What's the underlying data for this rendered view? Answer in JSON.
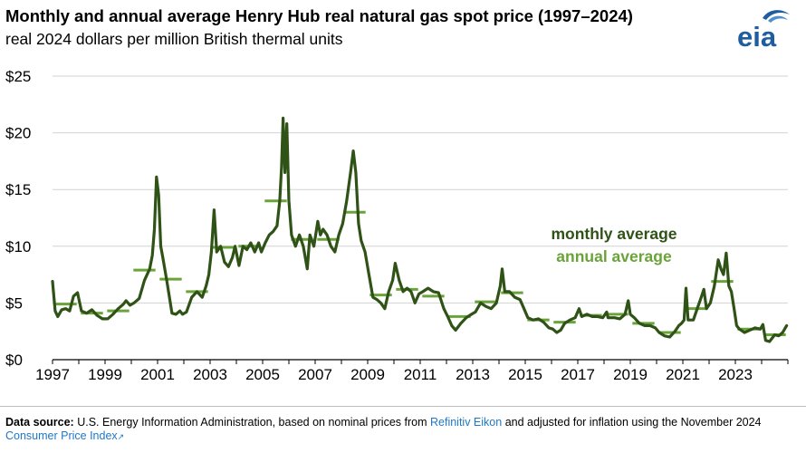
{
  "header": {
    "title": "Monthly and annual average Henry Hub real natural gas spot price (1997–2024)",
    "subtitle": "real 2024 dollars per million British thermal units",
    "logo_text": "eia"
  },
  "colors": {
    "monthly": "#2f5216",
    "annual": "#6aa33a",
    "grid": "#d2d2d2",
    "logo": "#1d5da0"
  },
  "chart_data": {
    "type": "line",
    "yunit": "$",
    "ylim": [
      0,
      25
    ],
    "yticks": [
      0,
      5,
      10,
      15,
      20,
      25
    ],
    "ytick_labels": [
      "$0",
      "$5",
      "$10",
      "$15",
      "$20",
      "$25"
    ],
    "xlim": [
      1997,
      2025
    ],
    "xticks": [
      1997,
      1999,
      2001,
      2003,
      2005,
      2007,
      2009,
      2011,
      2013,
      2015,
      2017,
      2019,
      2021,
      2023
    ],
    "xtick_labels": [
      "1997",
      "1999",
      "2001",
      "2003",
      "2005",
      "2007",
      "2009",
      "2011",
      "2013",
      "2015",
      "2017",
      "2019",
      "2021",
      "2023"
    ],
    "grid": "horizontal",
    "legend_placement": "right-center",
    "series": [
      {
        "name": "monthly average",
        "style": "line",
        "points": [
          [
            1997.0,
            6.9
          ],
          [
            1997.1,
            4.3
          ],
          [
            1997.2,
            3.8
          ],
          [
            1997.35,
            4.4
          ],
          [
            1997.5,
            4.5
          ],
          [
            1997.65,
            4.3
          ],
          [
            1997.8,
            5.6
          ],
          [
            1997.95,
            5.9
          ],
          [
            1998.1,
            4.3
          ],
          [
            1998.3,
            4.1
          ],
          [
            1998.5,
            4.4
          ],
          [
            1998.7,
            3.9
          ],
          [
            1998.9,
            3.6
          ],
          [
            1999.1,
            3.6
          ],
          [
            1999.3,
            4.0
          ],
          [
            1999.5,
            4.5
          ],
          [
            1999.7,
            4.9
          ],
          [
            1999.8,
            5.2
          ],
          [
            1999.95,
            4.8
          ],
          [
            2000.1,
            5.0
          ],
          [
            2000.3,
            5.4
          ],
          [
            2000.5,
            7.0
          ],
          [
            2000.7,
            8.0
          ],
          [
            2000.8,
            9.2
          ],
          [
            2000.88,
            11.5
          ],
          [
            2000.96,
            16.1
          ],
          [
            2001.04,
            14.5
          ],
          [
            2001.12,
            10.0
          ],
          [
            2001.2,
            9.0
          ],
          [
            2001.35,
            7.0
          ],
          [
            2001.45,
            5.5
          ],
          [
            2001.55,
            4.1
          ],
          [
            2001.7,
            4.0
          ],
          [
            2001.85,
            4.3
          ],
          [
            2001.95,
            4.0
          ],
          [
            2002.1,
            4.2
          ],
          [
            2002.3,
            5.5
          ],
          [
            2002.5,
            6.0
          ],
          [
            2002.7,
            5.5
          ],
          [
            2002.85,
            6.5
          ],
          [
            2002.95,
            7.5
          ],
          [
            2003.05,
            9.5
          ],
          [
            2003.15,
            13.2
          ],
          [
            2003.25,
            9.5
          ],
          [
            2003.4,
            10.0
          ],
          [
            2003.55,
            8.6
          ],
          [
            2003.7,
            8.2
          ],
          [
            2003.85,
            9.0
          ],
          [
            2003.95,
            10.0
          ],
          [
            2004.1,
            8.3
          ],
          [
            2004.25,
            10.0
          ],
          [
            2004.4,
            9.7
          ],
          [
            2004.55,
            10.3
          ],
          [
            2004.7,
            9.5
          ],
          [
            2004.85,
            10.3
          ],
          [
            2004.95,
            9.5
          ],
          [
            2005.1,
            10.3
          ],
          [
            2005.25,
            11.0
          ],
          [
            2005.4,
            11.3
          ],
          [
            2005.55,
            11.8
          ],
          [
            2005.65,
            14.0
          ],
          [
            2005.72,
            17.0
          ],
          [
            2005.78,
            21.3
          ],
          [
            2005.85,
            16.5
          ],
          [
            2005.92,
            20.8
          ],
          [
            2006.0,
            14.0
          ],
          [
            2006.1,
            11.0
          ],
          [
            2006.25,
            10.0
          ],
          [
            2006.4,
            11.0
          ],
          [
            2006.55,
            10.0
          ],
          [
            2006.7,
            8.0
          ],
          [
            2006.8,
            11.0
          ],
          [
            2006.95,
            10.0
          ],
          [
            2007.1,
            12.2
          ],
          [
            2007.2,
            11.0
          ],
          [
            2007.3,
            11.5
          ],
          [
            2007.45,
            11.0
          ],
          [
            2007.6,
            10.0
          ],
          [
            2007.75,
            9.5
          ],
          [
            2007.9,
            11.0
          ],
          [
            2008.05,
            12.0
          ],
          [
            2008.2,
            14.0
          ],
          [
            2008.35,
            16.5
          ],
          [
            2008.45,
            18.4
          ],
          [
            2008.55,
            16.5
          ],
          [
            2008.65,
            12.0
          ],
          [
            2008.75,
            10.5
          ],
          [
            2008.9,
            9.5
          ],
          [
            2009.05,
            7.5
          ],
          [
            2009.2,
            5.5
          ],
          [
            2009.35,
            5.3
          ],
          [
            2009.5,
            5.0
          ],
          [
            2009.65,
            4.5
          ],
          [
            2009.8,
            6.0
          ],
          [
            2009.95,
            7.0
          ],
          [
            2010.05,
            8.5
          ],
          [
            2010.2,
            7.0
          ],
          [
            2010.35,
            6.0
          ],
          [
            2010.5,
            6.3
          ],
          [
            2010.65,
            6.0
          ],
          [
            2010.8,
            5.0
          ],
          [
            2010.95,
            5.8
          ],
          [
            2011.1,
            6.0
          ],
          [
            2011.3,
            6.3
          ],
          [
            2011.5,
            6.0
          ],
          [
            2011.7,
            5.9
          ],
          [
            2011.9,
            4.5
          ],
          [
            2012.05,
            3.8
          ],
          [
            2012.2,
            3.0
          ],
          [
            2012.35,
            2.6
          ],
          [
            2012.55,
            3.2
          ],
          [
            2012.75,
            3.7
          ],
          [
            2012.95,
            4.0
          ],
          [
            2013.1,
            4.2
          ],
          [
            2013.3,
            5.0
          ],
          [
            2013.5,
            4.7
          ],
          [
            2013.7,
            4.5
          ],
          [
            2013.9,
            5.0
          ],
          [
            2014.05,
            6.5
          ],
          [
            2014.12,
            8.0
          ],
          [
            2014.22,
            6.0
          ],
          [
            2014.4,
            6.0
          ],
          [
            2014.6,
            5.5
          ],
          [
            2014.8,
            5.3
          ],
          [
            2014.95,
            4.5
          ],
          [
            2015.1,
            3.7
          ],
          [
            2015.3,
            3.5
          ],
          [
            2015.5,
            3.6
          ],
          [
            2015.7,
            3.3
          ],
          [
            2015.9,
            2.8
          ],
          [
            2016.05,
            2.7
          ],
          [
            2016.2,
            2.4
          ],
          [
            2016.35,
            2.6
          ],
          [
            2016.5,
            3.2
          ],
          [
            2016.7,
            3.5
          ],
          [
            2016.9,
            3.7
          ],
          [
            2017.05,
            4.5
          ],
          [
            2017.15,
            3.8
          ],
          [
            2017.35,
            4.0
          ],
          [
            2017.55,
            3.8
          ],
          [
            2017.75,
            3.8
          ],
          [
            2017.95,
            3.7
          ],
          [
            2018.1,
            4.2
          ],
          [
            2018.15,
            3.7
          ],
          [
            2018.4,
            3.7
          ],
          [
            2018.6,
            3.6
          ],
          [
            2018.8,
            4.0
          ],
          [
            2018.92,
            5.2
          ],
          [
            2019.0,
            4.0
          ],
          [
            2019.15,
            3.7
          ],
          [
            2019.35,
            3.2
          ],
          [
            2019.55,
            3.0
          ],
          [
            2019.75,
            3.0
          ],
          [
            2019.95,
            2.8
          ],
          [
            2020.1,
            2.4
          ],
          [
            2020.3,
            2.1
          ],
          [
            2020.5,
            2.0
          ],
          [
            2020.7,
            2.5
          ],
          [
            2020.85,
            3.0
          ],
          [
            2020.95,
            3.2
          ],
          [
            2021.05,
            3.5
          ],
          [
            2021.12,
            6.3
          ],
          [
            2021.2,
            3.5
          ],
          [
            2021.4,
            3.5
          ],
          [
            2021.55,
            4.5
          ],
          [
            2021.7,
            5.5
          ],
          [
            2021.8,
            6.2
          ],
          [
            2021.9,
            4.5
          ],
          [
            2022.05,
            5.0
          ],
          [
            2022.2,
            6.5
          ],
          [
            2022.35,
            8.8
          ],
          [
            2022.45,
            8.0
          ],
          [
            2022.55,
            7.5
          ],
          [
            2022.65,
            9.4
          ],
          [
            2022.75,
            6.5
          ],
          [
            2022.85,
            6.0
          ],
          [
            2022.95,
            4.5
          ],
          [
            2023.05,
            3.0
          ],
          [
            2023.15,
            2.7
          ],
          [
            2023.35,
            2.4
          ],
          [
            2023.55,
            2.6
          ],
          [
            2023.75,
            2.8
          ],
          [
            2023.95,
            2.7
          ],
          [
            2024.05,
            3.1
          ],
          [
            2024.15,
            1.7
          ],
          [
            2024.3,
            1.6
          ],
          [
            2024.5,
            2.2
          ],
          [
            2024.65,
            2.1
          ],
          [
            2024.8,
            2.4
          ],
          [
            2024.95,
            3.0
          ]
        ]
      },
      {
        "name": "annual average",
        "style": "step",
        "years": [
          1997,
          1998,
          1999,
          2000,
          2001,
          2002,
          2003,
          2004,
          2005,
          2006,
          2007,
          2008,
          2009,
          2010,
          2011,
          2012,
          2013,
          2014,
          2015,
          2016,
          2017,
          2018,
          2019,
          2020,
          2021,
          2022,
          2023,
          2024
        ],
        "values": [
          4.9,
          4.1,
          4.3,
          7.9,
          7.1,
          6.0,
          9.9,
          10.0,
          14.0,
          10.6,
          10.6,
          13.0,
          5.7,
          6.2,
          5.6,
          3.8,
          5.1,
          5.9,
          3.5,
          3.3,
          3.9,
          4.0,
          3.2,
          2.4,
          4.5,
          6.9,
          2.7,
          2.2
        ]
      }
    ],
    "legend": [
      "monthly average",
      "annual average"
    ]
  },
  "source": {
    "label": "Data source:",
    "text1": "U.S. Energy Information Administration, based on nominal prices from",
    "link1": "Refinitiv Eikon",
    "text2": "and adjusted for inflation using the November 2024",
    "link2": "Consumer Price Index"
  }
}
